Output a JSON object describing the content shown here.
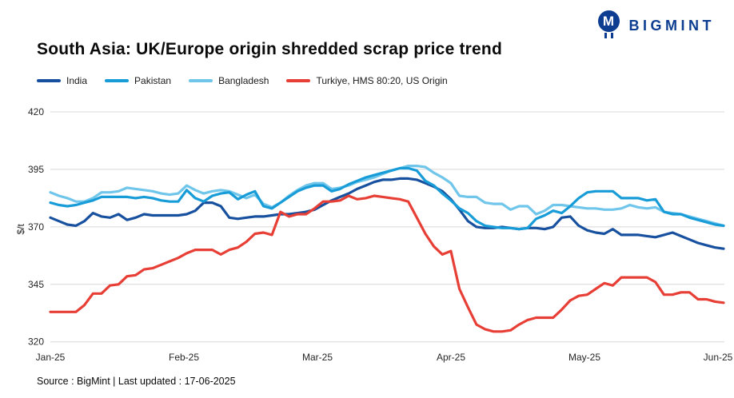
{
  "header": {
    "title": "South Asia: UK/Europe origin shredded scrap price trend",
    "brand": "BIGMINT",
    "brand_monogram": "M"
  },
  "footer": {
    "source": "Source : BigMint | Last updated : 17-06-2025"
  },
  "colors": {
    "brand_blue": "#0d3d91",
    "grid": "#d8d8d8",
    "tick_text": "#262626"
  },
  "chart_data": {
    "type": "line",
    "title": "South Asia: UK/Europe origin shredded scrap price trend",
    "xlabel": "",
    "ylabel": "$/t",
    "ylim": [
      320,
      420
    ],
    "yticks": [
      420,
      395,
      370,
      345,
      320
    ],
    "xticklabels": [
      "Jan-25",
      "Feb-25",
      "Mar-25",
      "Apr-25",
      "May-25",
      "Jun-25"
    ],
    "grid": "horizontal",
    "legend_position": "top-left",
    "series": [
      {
        "name": "India",
        "color": "#17509e",
        "values": [
          374,
          372.5,
          371,
          370.5,
          372.5,
          376,
          374.5,
          374,
          375.5,
          373,
          374,
          375.5,
          375,
          375,
          375,
          375,
          375.5,
          377,
          380.5,
          380.5,
          379,
          374,
          373.5,
          374,
          374.5,
          374.5,
          375,
          375.5,
          375.5,
          376,
          376.5,
          377.5,
          379.5,
          381.5,
          383,
          384.5,
          386.5,
          388,
          389.5,
          390.5,
          390.5,
          391,
          391,
          390.5,
          389,
          387.5,
          385.5,
          382,
          377.5,
          372.5,
          370,
          369.5,
          369.5,
          370,
          369.5,
          369,
          369.5,
          369.5,
          369,
          370,
          374,
          374.5,
          370.5,
          368.5,
          367.5,
          367,
          369,
          366.5,
          366.5,
          366.5,
          366,
          365.5,
          366.5,
          367.5,
          366,
          364.5,
          363,
          362,
          361,
          360.5
        ]
      },
      {
        "name": "Pakistan",
        "color": "#189cd8",
        "values": [
          380.5,
          379.5,
          379,
          379.5,
          380.5,
          381.5,
          383,
          383,
          383,
          383,
          382.5,
          383,
          382.5,
          381.5,
          381,
          381,
          386,
          382.5,
          381,
          383.5,
          384.5,
          385,
          382,
          384,
          385.5,
          379,
          378,
          380.5,
          383,
          385.5,
          387,
          388,
          388,
          385.5,
          386.5,
          388.5,
          390,
          391.5,
          392.5,
          393.5,
          394.5,
          395.5,
          395.5,
          394.5,
          390,
          388,
          384.5,
          381.5,
          378,
          376,
          372.5,
          370.5,
          370,
          369.5,
          369.5,
          369,
          369.5,
          373.5,
          375,
          377,
          376,
          379,
          382.5,
          385,
          385.5,
          385.5,
          385.5,
          382.5,
          382.5,
          382.5,
          381.5,
          382,
          376.5,
          375.5,
          375.5,
          374,
          373,
          372,
          371,
          370.5
        ]
      },
      {
        "name": "Bangladesh",
        "color": "#70c6ea",
        "values": [
          385,
          383.5,
          382.5,
          381,
          381,
          382.5,
          385,
          385,
          385.5,
          387,
          386.5,
          386,
          385.5,
          384.5,
          384,
          384.5,
          388,
          386,
          384.5,
          385.5,
          386,
          385.5,
          384,
          382.5,
          384,
          380,
          378.5,
          380.5,
          383.5,
          386,
          388,
          389,
          389,
          386.5,
          387,
          388,
          389.5,
          390.5,
          391.5,
          393,
          394.5,
          395.5,
          396.5,
          396.5,
          396,
          393.5,
          391.5,
          389,
          383.5,
          383,
          383,
          380.5,
          380,
          380,
          377.5,
          379,
          379,
          375.5,
          377,
          379.5,
          379.5,
          379,
          378.5,
          378,
          378,
          377.5,
          377.5,
          378,
          379.5,
          378.5,
          378,
          378.5,
          376.5,
          376,
          375.5,
          374.5,
          373.5,
          372.5,
          371.5,
          370.5
        ]
      },
      {
        "name": "Turkiye, HMS 80:20, US Origin",
        "color": "#e73f36",
        "values": [
          333,
          333,
          333,
          333,
          336,
          341,
          341,
          344.5,
          345,
          348.5,
          349,
          351.5,
          352,
          353.5,
          355,
          356.5,
          358.5,
          360,
          360,
          360,
          358,
          360,
          361,
          363.5,
          367,
          367.5,
          366.5,
          376.5,
          374.5,
          375.5,
          375.5,
          378,
          381,
          381,
          381.5,
          383.5,
          382,
          382.5,
          383.5,
          383,
          382.5,
          382,
          381,
          374,
          367,
          361.5,
          358,
          359.5,
          343,
          335,
          327.5,
          325.5,
          324.5,
          324.5,
          325,
          327.5,
          329.5,
          330.5,
          330.5,
          330.5,
          334,
          338,
          340,
          340.5,
          343,
          345.5,
          344.5,
          348,
          348,
          348,
          348,
          346,
          340.5,
          340.5,
          341.5,
          341.5,
          338.5,
          338.5,
          337.5,
          337
        ]
      }
    ]
  }
}
